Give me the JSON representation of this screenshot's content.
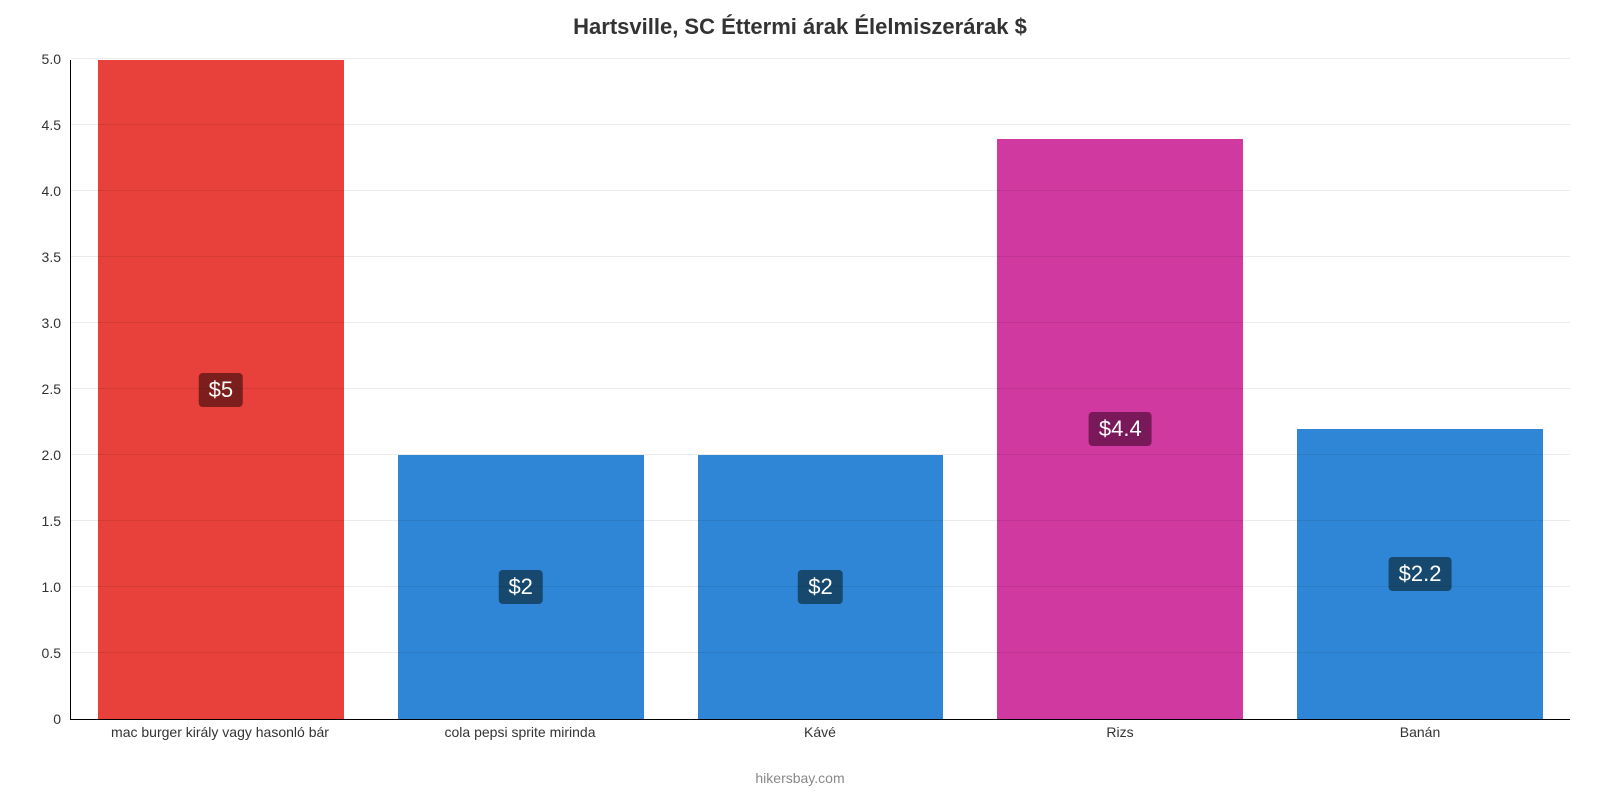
{
  "chart": {
    "type": "bar",
    "title": "Hartsville, SC Éttermi árak Élelmiszerárak $",
    "title_fontsize": 22,
    "title_color": "#333333",
    "background_color": "#ffffff",
    "grid_color": "rgba(0,0,0,0.08)",
    "axis_color": "#000000",
    "ylim_min": 0,
    "ylim_max": 5.0,
    "ytick_step": 0.5,
    "ytick_labels": [
      "0",
      "0.5",
      "1.0",
      "1.5",
      "2.0",
      "2.5",
      "3.0",
      "3.5",
      "4.0",
      "4.5",
      "5.0"
    ],
    "ytick_label_fontsize": 14,
    "x_label_fontsize": 14,
    "bar_width_pct": 82,
    "value_badge_fontsize": 22,
    "categories": [
      "mac burger király vagy hasonló bár",
      "cola pepsi sprite mirinda",
      "Kávé",
      "Rizs",
      "Banán"
    ],
    "values": [
      5.0,
      2.0,
      2.0,
      4.4,
      2.2
    ],
    "value_labels": [
      "$5",
      "$2",
      "$2",
      "$4.4",
      "$2.2"
    ],
    "bar_colors": [
      "#e8403a",
      "#2f86d6",
      "#2f86d6",
      "#d0399f",
      "#2f86d6"
    ],
    "badge_bg_colors": [
      "#7c1f1c",
      "#17496f",
      "#17496f",
      "#7a195a",
      "#17496f"
    ],
    "footer": "hikersbay.com",
    "footer_color": "#888888",
    "footer_fontsize": 14
  }
}
